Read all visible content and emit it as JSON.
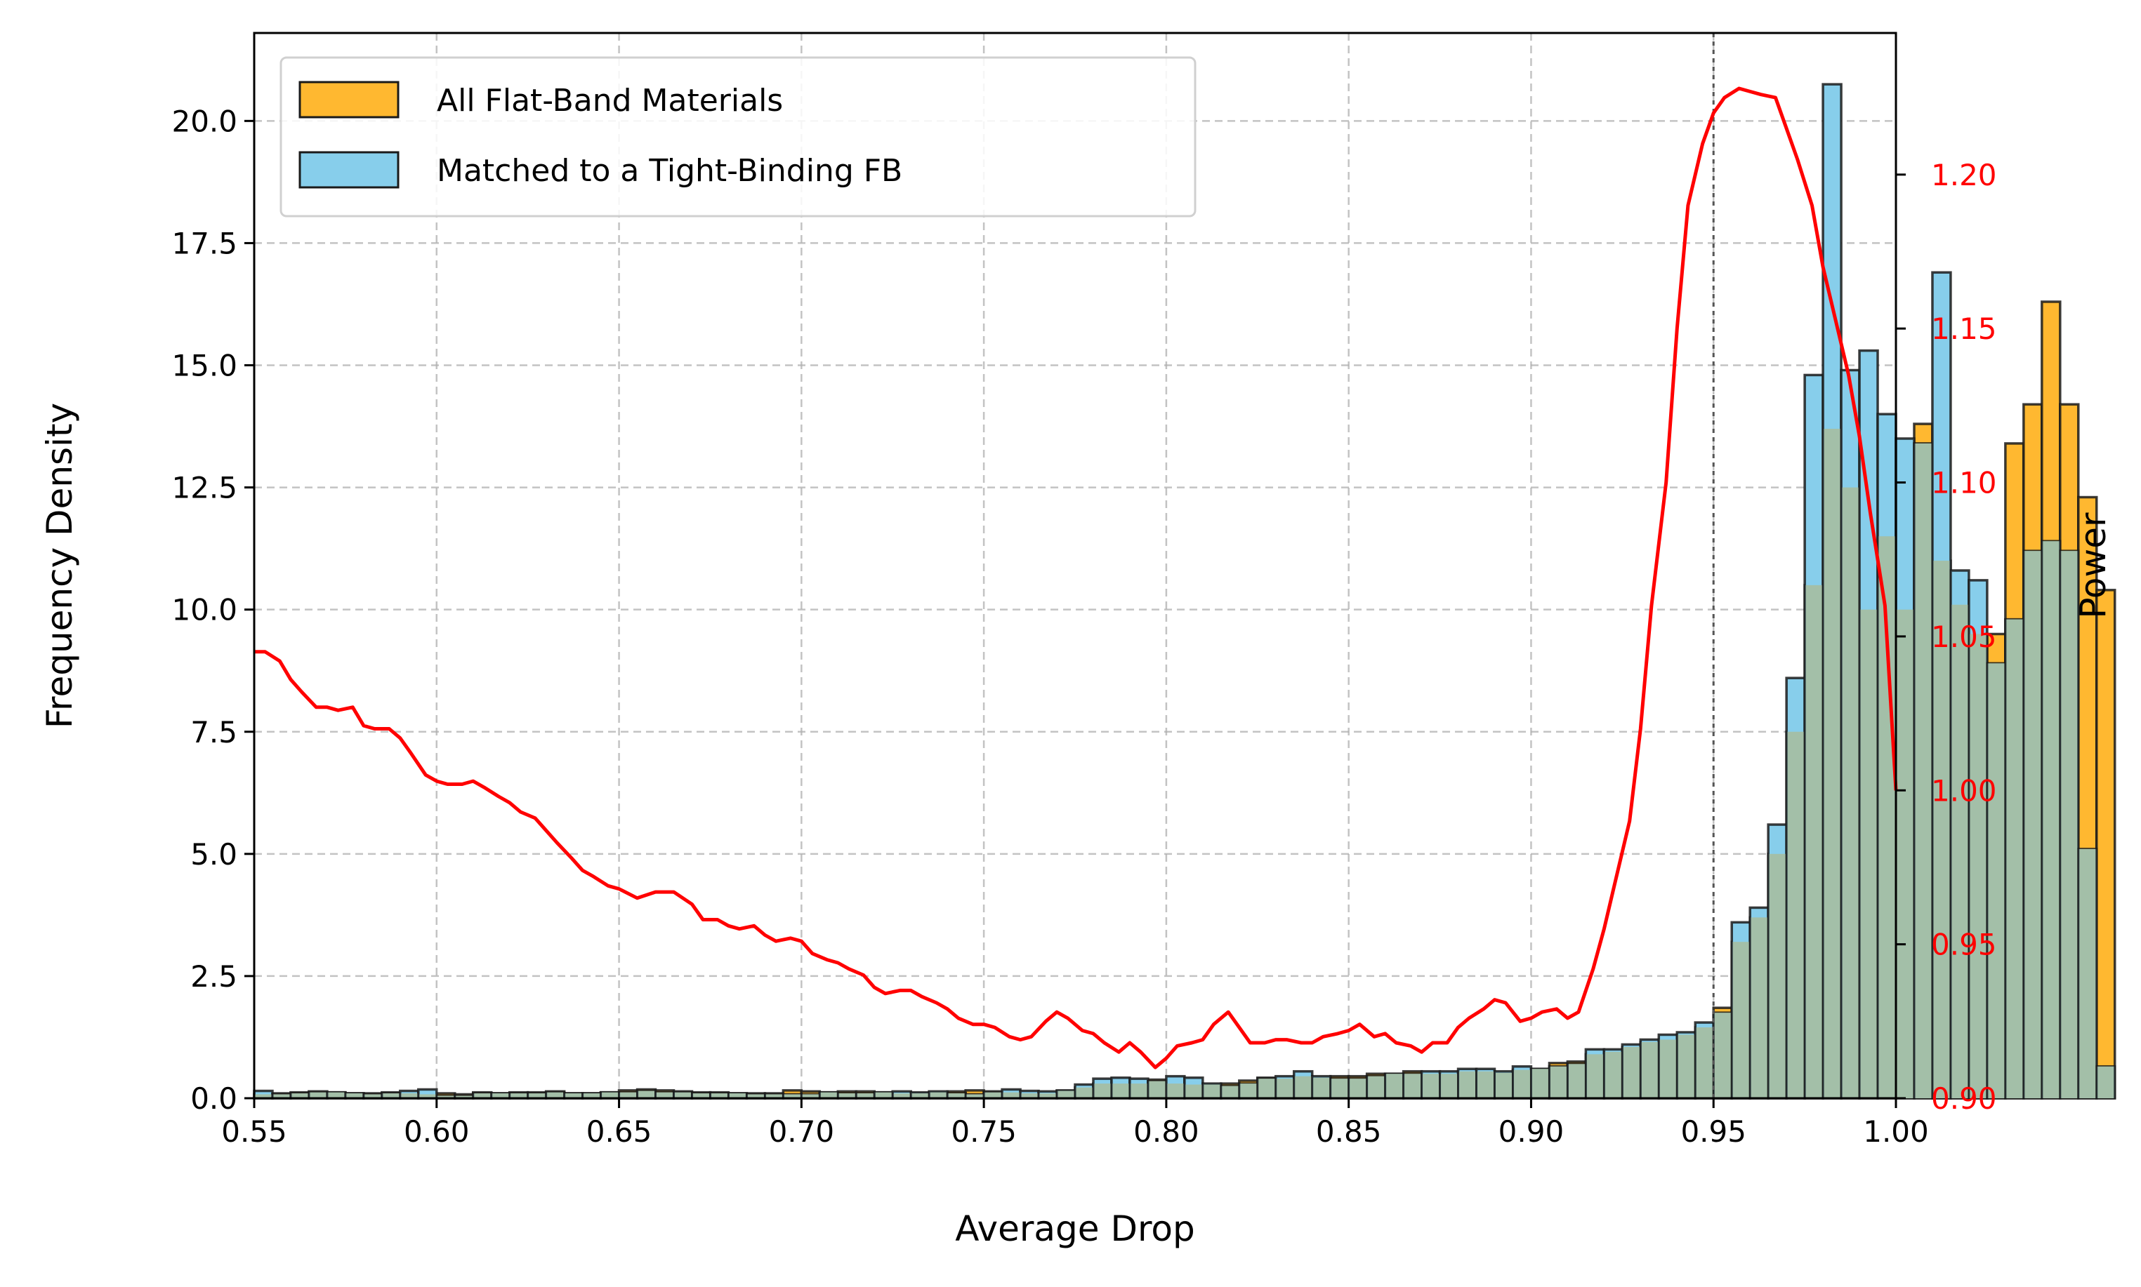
{
  "chart_data": {
    "type": "bar",
    "xlabel": "Average Drop",
    "ylabel": "Frequency Density",
    "y2label": "Power",
    "xlim": [
      0.55,
      1.0
    ],
    "ylim": [
      0,
      21.8
    ],
    "y2lim": [
      0.9,
      1.246
    ],
    "grid": true,
    "legend_position": "top-left",
    "xticks": [
      "0.55",
      "0.60",
      "0.65",
      "0.70",
      "0.75",
      "0.80",
      "0.85",
      "0.90",
      "0.95",
      "1.00"
    ],
    "yticks": [
      "0.0",
      "2.5",
      "5.0",
      "7.5",
      "10.0",
      "12.5",
      "15.0",
      "17.5",
      "20.0"
    ],
    "y2ticks": [
      "0.90",
      "0.95",
      "1.00",
      "1.05",
      "1.10",
      "1.15",
      "1.20"
    ],
    "vline_x": 0.95,
    "bin_start": 0.55,
    "bin_width": 0.005,
    "colors": {
      "all": "#ffb830",
      "matched": "#87ceeb",
      "overlap": "#a3bfa8",
      "edge": "#1a1a1a",
      "power": "#ff0000",
      "right_axis": "#ff0000"
    },
    "series": [
      {
        "name": "All Flat-Band Materials",
        "values": [
          0.08,
          0.1,
          0.12,
          0.14,
          0.12,
          0.1,
          0.1,
          0.12,
          0.1,
          0.08,
          0.1,
          0.08,
          0.12,
          0.1,
          0.12,
          0.12,
          0.14,
          0.1,
          0.1,
          0.12,
          0.16,
          0.18,
          0.16,
          0.14,
          0.12,
          0.12,
          0.1,
          0.1,
          0.1,
          0.16,
          0.14,
          0.12,
          0.14,
          0.14,
          0.12,
          0.1,
          0.1,
          0.12,
          0.14,
          0.16,
          0.14,
          0.12,
          0.1,
          0.1,
          0.15,
          0.22,
          0.3,
          0.3,
          0.3,
          0.38,
          0.3,
          0.28,
          0.28,
          0.3,
          0.36,
          0.42,
          0.4,
          0.45,
          0.42,
          0.45,
          0.45,
          0.5,
          0.5,
          0.55,
          0.5,
          0.5,
          0.55,
          0.55,
          0.52,
          0.58,
          0.6,
          0.72,
          0.75,
          0.9,
          0.95,
          1.05,
          1.15,
          1.2,
          1.3,
          1.45,
          1.85,
          3.2,
          3.7,
          5.0,
          7.5,
          10.5,
          13.7,
          12.5,
          10.0,
          11.5,
          10.0,
          13.8,
          11.0,
          10.1,
          9.5,
          9.5,
          13.4,
          14.2,
          16.3,
          14.2,
          12.3,
          10.4
        ]
      },
      {
        "name": "Matched to a Tight-Binding FB",
        "values": [
          0.15,
          0.08,
          0.1,
          0.12,
          0.12,
          0.1,
          0.08,
          0.1,
          0.15,
          0.18,
          0.05,
          0.05,
          0.1,
          0.1,
          0.1,
          0.1,
          0.12,
          0.1,
          0.1,
          0.12,
          0.12,
          0.15,
          0.12,
          0.12,
          0.1,
          0.1,
          0.1,
          0.08,
          0.08,
          0.08,
          0.08,
          0.12,
          0.1,
          0.1,
          0.12,
          0.14,
          0.12,
          0.14,
          0.1,
          0.08,
          0.12,
          0.18,
          0.15,
          0.14,
          0.16,
          0.28,
          0.4,
          0.42,
          0.4,
          0.35,
          0.45,
          0.42,
          0.3,
          0.25,
          0.3,
          0.4,
          0.45,
          0.55,
          0.45,
          0.4,
          0.4,
          0.45,
          0.5,
          0.5,
          0.55,
          0.55,
          0.6,
          0.6,
          0.55,
          0.65,
          0.6,
          0.65,
          0.7,
          1.0,
          1.0,
          1.1,
          1.2,
          1.3,
          1.35,
          1.55,
          1.75,
          3.6,
          3.9,
          5.6,
          8.6,
          14.8,
          20.75,
          14.9,
          15.3,
          14.0,
          13.5,
          13.4,
          16.9,
          10.8,
          10.6,
          8.9,
          9.8,
          11.2,
          11.4,
          11.2,
          5.1,
          0.65
        ]
      },
      {
        "name": "",
        "type": "line",
        "axis": "right",
        "x": [
          0.55,
          0.553,
          0.557,
          0.56,
          0.563,
          0.567,
          0.57,
          0.573,
          0.577,
          0.58,
          0.583,
          0.587,
          0.59,
          0.593,
          0.597,
          0.6,
          0.603,
          0.607,
          0.61,
          0.613,
          0.617,
          0.62,
          0.623,
          0.627,
          0.63,
          0.633,
          0.637,
          0.64,
          0.643,
          0.647,
          0.65,
          0.655,
          0.66,
          0.665,
          0.67,
          0.673,
          0.677,
          0.68,
          0.683,
          0.687,
          0.69,
          0.693,
          0.697,
          0.7,
          0.703,
          0.707,
          0.71,
          0.713,
          0.717,
          0.72,
          0.723,
          0.727,
          0.73,
          0.733,
          0.737,
          0.74,
          0.743,
          0.747,
          0.75,
          0.753,
          0.757,
          0.76,
          0.763,
          0.767,
          0.77,
          0.773,
          0.777,
          0.78,
          0.783,
          0.787,
          0.79,
          0.793,
          0.797,
          0.8,
          0.803,
          0.807,
          0.81,
          0.813,
          0.817,
          0.82,
          0.823,
          0.827,
          0.83,
          0.833,
          0.837,
          0.84,
          0.843,
          0.847,
          0.85,
          0.853,
          0.857,
          0.86,
          0.863,
          0.867,
          0.87,
          0.873,
          0.877,
          0.88,
          0.883,
          0.887,
          0.89,
          0.893,
          0.897,
          0.9,
          0.903,
          0.907,
          0.91,
          0.913,
          0.917,
          0.92,
          0.923,
          0.927,
          0.93,
          0.933,
          0.937,
          0.94,
          0.943,
          0.947,
          0.95,
          0.953,
          0.957,
          0.96,
          0.963,
          0.967,
          0.97,
          0.973,
          0.977,
          0.98,
          0.983,
          0.987,
          0.99,
          0.993,
          0.997,
          1.0
        ],
        "values": [
          1.045,
          1.045,
          1.042,
          1.036,
          1.032,
          1.027,
          1.027,
          1.026,
          1.027,
          1.021,
          1.02,
          1.02,
          1.017,
          1.012,
          1.005,
          1.003,
          1.002,
          1.002,
          1.003,
          1.001,
          0.998,
          0.996,
          0.993,
          0.991,
          0.987,
          0.983,
          0.978,
          0.974,
          0.972,
          0.969,
          0.968,
          0.965,
          0.967,
          0.967,
          0.963,
          0.958,
          0.958,
          0.956,
          0.955,
          0.956,
          0.953,
          0.951,
          0.952,
          0.951,
          0.947,
          0.945,
          0.944,
          0.942,
          0.94,
          0.936,
          0.934,
          0.935,
          0.935,
          0.933,
          0.931,
          0.929,
          0.926,
          0.924,
          0.924,
          0.923,
          0.92,
          0.919,
          0.92,
          0.925,
          0.928,
          0.926,
          0.922,
          0.921,
          0.918,
          0.915,
          0.918,
          0.915,
          0.91,
          0.913,
          0.917,
          0.918,
          0.919,
          0.924,
          0.928,
          0.923,
          0.918,
          0.918,
          0.919,
          0.919,
          0.918,
          0.918,
          0.92,
          0.921,
          0.922,
          0.924,
          0.92,
          0.921,
          0.918,
          0.917,
          0.915,
          0.918,
          0.918,
          0.923,
          0.926,
          0.929,
          0.932,
          0.931,
          0.925,
          0.926,
          0.928,
          0.929,
          0.926,
          0.928,
          0.942,
          0.955,
          0.97,
          0.99,
          1.02,
          1.06,
          1.1,
          1.15,
          1.19,
          1.21,
          1.22,
          1.225,
          1.228,
          1.227,
          1.226,
          1.225,
          1.215,
          1.205,
          1.19,
          1.17,
          1.155,
          1.135,
          1.115,
          1.09,
          1.06,
          1.0
        ]
      }
    ]
  }
}
